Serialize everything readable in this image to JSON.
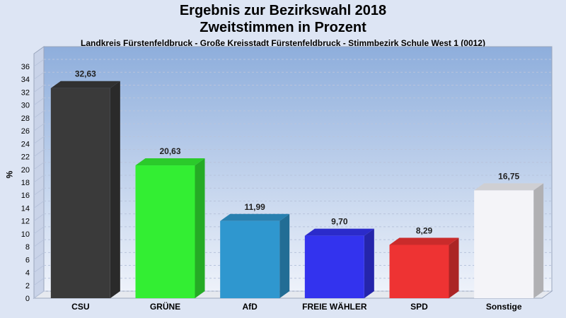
{
  "header": {
    "title_line1": "Ergebnis zur Bezirkswahl 2018",
    "title_line2": "Zweitstimmen in Prozent",
    "subtitle": "Landkreis Fürstenfeldbruck - Große Kreisstadt Fürstenfeldbruck - Stimmbezirk Schule West 1 (0012)"
  },
  "chart_data": {
    "type": "bar",
    "title": "Ergebnis zur Bezirkswahl 2018 Zweitstimmen in Prozent",
    "ylabel": "%",
    "ylim": [
      0,
      36
    ],
    "yticks": [
      0,
      2,
      4,
      6,
      8,
      10,
      12,
      14,
      16,
      18,
      20,
      22,
      24,
      26,
      28,
      30,
      32,
      34,
      36
    ],
    "grid": true,
    "categories": [
      "CSU",
      "GRÜNE",
      "AfD",
      "FREIE WÄHLER",
      "SPD",
      "Sonstige"
    ],
    "values": [
      32.63,
      20.63,
      11.99,
      9.7,
      8.29,
      16.75
    ],
    "value_labels": [
      "32,63",
      "20,63",
      "11,99",
      "9,70",
      "8,29",
      "16,75"
    ],
    "colors": [
      "#3a3a3a",
      "#33ee33",
      "#2f97cf",
      "#3333ee",
      "#ee3333",
      "#f4f4f8"
    ]
  }
}
